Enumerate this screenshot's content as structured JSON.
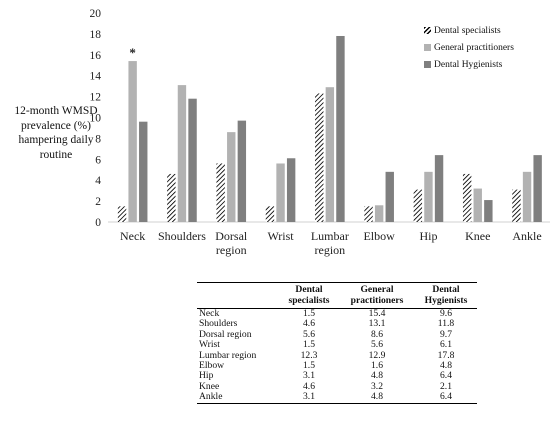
{
  "chart_data": {
    "type": "bar",
    "ylabel": "12-month WMSD prevalence (%) hampering daily routine",
    "ylim": [
      0,
      20
    ],
    "yticks": [
      0,
      2,
      4,
      6,
      8,
      10,
      12,
      14,
      16,
      18,
      20
    ],
    "categories": [
      "Neck",
      "Shoulders",
      "Dorsal region",
      "Wrist",
      "Lumbar region",
      "Elbow",
      "Hip",
      "Knee",
      "Ankle"
    ],
    "series": [
      {
        "name": "Dental specialists",
        "values": [
          1.5,
          4.6,
          5.6,
          1.5,
          12.3,
          1.5,
          3.1,
          4.6,
          3.1
        ],
        "color": "#000000",
        "pattern": "hatch"
      },
      {
        "name": "General practitioners",
        "values": [
          15.4,
          13.1,
          8.6,
          5.6,
          12.9,
          1.6,
          4.8,
          3.2,
          4.8
        ],
        "color": "#b2b2b2"
      },
      {
        "name": "Dental Hygienists",
        "values": [
          9.6,
          11.8,
          9.7,
          6.1,
          17.8,
          4.8,
          6.4,
          2.1,
          6.4
        ],
        "color": "#7f7f7f"
      }
    ],
    "annotations": [
      {
        "category": "Neck",
        "series": "General practitioners",
        "text": "*"
      }
    ],
    "grid": false,
    "legend": "top-right"
  },
  "table": {
    "headers": [
      "",
      "Dental specialists",
      "General practitioners",
      "Dental Hygienists"
    ],
    "rows": [
      [
        "Neck",
        "1.5",
        "15.4",
        "9.6"
      ],
      [
        "Shoulders",
        "4.6",
        "13.1",
        "11.8"
      ],
      [
        "Dorsal region",
        "5.6",
        "8.6",
        "9.7"
      ],
      [
        "Wrist",
        "1.5",
        "5.6",
        "6.1"
      ],
      [
        "Lumbar region",
        "12.3",
        "12.9",
        "17.8"
      ],
      [
        "Elbow",
        "1.5",
        "1.6",
        "4.8"
      ],
      [
        "Hip",
        "3.1",
        "4.8",
        "6.4"
      ],
      [
        "Knee",
        "4.6",
        "3.2",
        "2.1"
      ],
      [
        "Ankle",
        "3.1",
        "4.8",
        "6.4"
      ]
    ]
  }
}
